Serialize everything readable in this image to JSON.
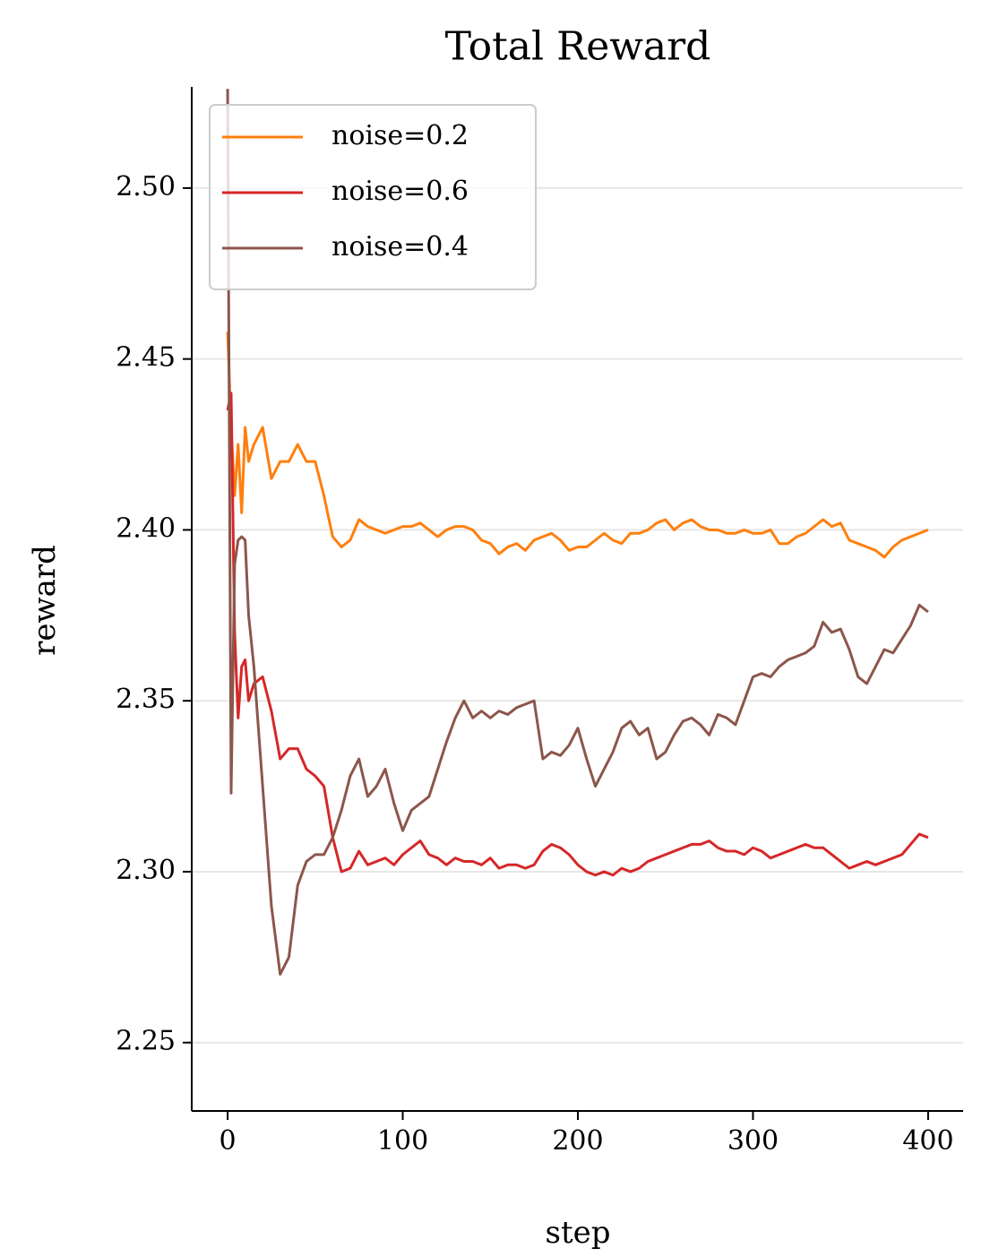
{
  "chart_data": {
    "type": "line",
    "title": "Total Reward",
    "x_label": "step",
    "y_label": "reward",
    "x": [
      0,
      2,
      4,
      6,
      8,
      10,
      12,
      15,
      20,
      25,
      30,
      35,
      40,
      45,
      50,
      55,
      60,
      65,
      70,
      75,
      80,
      85,
      90,
      95,
      100,
      105,
      110,
      115,
      120,
      125,
      130,
      135,
      140,
      145,
      150,
      155,
      160,
      165,
      170,
      175,
      180,
      185,
      190,
      195,
      200,
      205,
      210,
      215,
      220,
      225,
      230,
      235,
      240,
      245,
      250,
      255,
      260,
      265,
      270,
      275,
      280,
      285,
      290,
      295,
      300,
      305,
      310,
      315,
      320,
      325,
      330,
      335,
      340,
      345,
      350,
      355,
      360,
      365,
      370,
      375,
      380,
      385,
      390,
      395,
      400
    ],
    "series": [
      {
        "name": "noise=0.2",
        "color": "#ff7f0e",
        "values": [
          2.458,
          2.43,
          2.41,
          2.425,
          2.405,
          2.43,
          2.42,
          2.425,
          2.43,
          2.415,
          2.42,
          2.42,
          2.425,
          2.42,
          2.42,
          2.41,
          2.398,
          2.395,
          2.397,
          2.403,
          2.401,
          2.4,
          2.399,
          2.4,
          2.401,
          2.401,
          2.402,
          2.4,
          2.398,
          2.4,
          2.401,
          2.401,
          2.4,
          2.397,
          2.396,
          2.393,
          2.395,
          2.396,
          2.394,
          2.397,
          2.398,
          2.399,
          2.397,
          2.394,
          2.395,
          2.395,
          2.397,
          2.399,
          2.397,
          2.396,
          2.399,
          2.399,
          2.4,
          2.402,
          2.403,
          2.4,
          2.402,
          2.403,
          2.401,
          2.4,
          2.4,
          2.399,
          2.399,
          2.4,
          2.399,
          2.399,
          2.4,
          2.396,
          2.396,
          2.398,
          2.399,
          2.401,
          2.403,
          2.401,
          2.402,
          2.397,
          2.396,
          2.395,
          2.394,
          2.392,
          2.395,
          2.397,
          2.398,
          2.399,
          2.4
        ]
      },
      {
        "name": "noise=0.6",
        "color": "#d62728",
        "values": [
          2.435,
          2.44,
          2.37,
          2.345,
          2.36,
          2.362,
          2.35,
          2.355,
          2.357,
          2.347,
          2.333,
          2.336,
          2.336,
          2.33,
          2.328,
          2.325,
          2.31,
          2.3,
          2.301,
          2.306,
          2.302,
          2.303,
          2.304,
          2.302,
          2.305,
          2.307,
          2.309,
          2.305,
          2.304,
          2.302,
          2.304,
          2.303,
          2.303,
          2.302,
          2.304,
          2.301,
          2.302,
          2.302,
          2.301,
          2.302,
          2.306,
          2.308,
          2.307,
          2.305,
          2.302,
          2.3,
          2.299,
          2.3,
          2.299,
          2.301,
          2.3,
          2.301,
          2.303,
          2.304,
          2.305,
          2.306,
          2.307,
          2.308,
          2.308,
          2.309,
          2.307,
          2.306,
          2.306,
          2.305,
          2.307,
          2.306,
          2.304,
          2.305,
          2.306,
          2.307,
          2.308,
          2.307,
          2.307,
          2.305,
          2.303,
          2.301,
          2.302,
          2.303,
          2.302,
          2.303,
          2.304,
          2.305,
          2.308,
          2.311,
          2.31
        ]
      },
      {
        "name": "noise=0.4",
        "color": "#8c564b",
        "values": [
          2.529,
          2.323,
          2.39,
          2.397,
          2.398,
          2.397,
          2.375,
          2.36,
          2.325,
          2.29,
          2.27,
          2.275,
          2.296,
          2.303,
          2.305,
          2.305,
          2.31,
          2.318,
          2.328,
          2.333,
          2.322,
          2.325,
          2.33,
          2.32,
          2.312,
          2.318,
          2.32,
          2.322,
          2.33,
          2.338,
          2.345,
          2.35,
          2.345,
          2.347,
          2.345,
          2.347,
          2.346,
          2.348,
          2.349,
          2.35,
          2.333,
          2.335,
          2.334,
          2.337,
          2.342,
          2.333,
          2.325,
          2.33,
          2.335,
          2.342,
          2.344,
          2.34,
          2.342,
          2.333,
          2.335,
          2.34,
          2.344,
          2.345,
          2.343,
          2.34,
          2.346,
          2.345,
          2.343,
          2.35,
          2.357,
          2.358,
          2.357,
          2.36,
          2.362,
          2.363,
          2.364,
          2.366,
          2.373,
          2.37,
          2.371,
          2.365,
          2.357,
          2.355,
          2.36,
          2.365,
          2.364,
          2.368,
          2.372,
          2.378,
          2.376
        ]
      }
    ],
    "xlim": [
      -20.5,
      420
    ],
    "ylim": [
      2.23,
      2.5296
    ],
    "xticks": [
      0,
      100,
      200,
      300,
      400
    ],
    "yticks": [
      2.25,
      {
        "value": 2.3,
        "label": "2.30"
      },
      2.35,
      {
        "value": 2.4,
        "label": "2.40"
      },
      2.45,
      {
        "value": 2.5,
        "label": "2.50"
      }
    ],
    "grid": true,
    "legend": "upper left"
  }
}
